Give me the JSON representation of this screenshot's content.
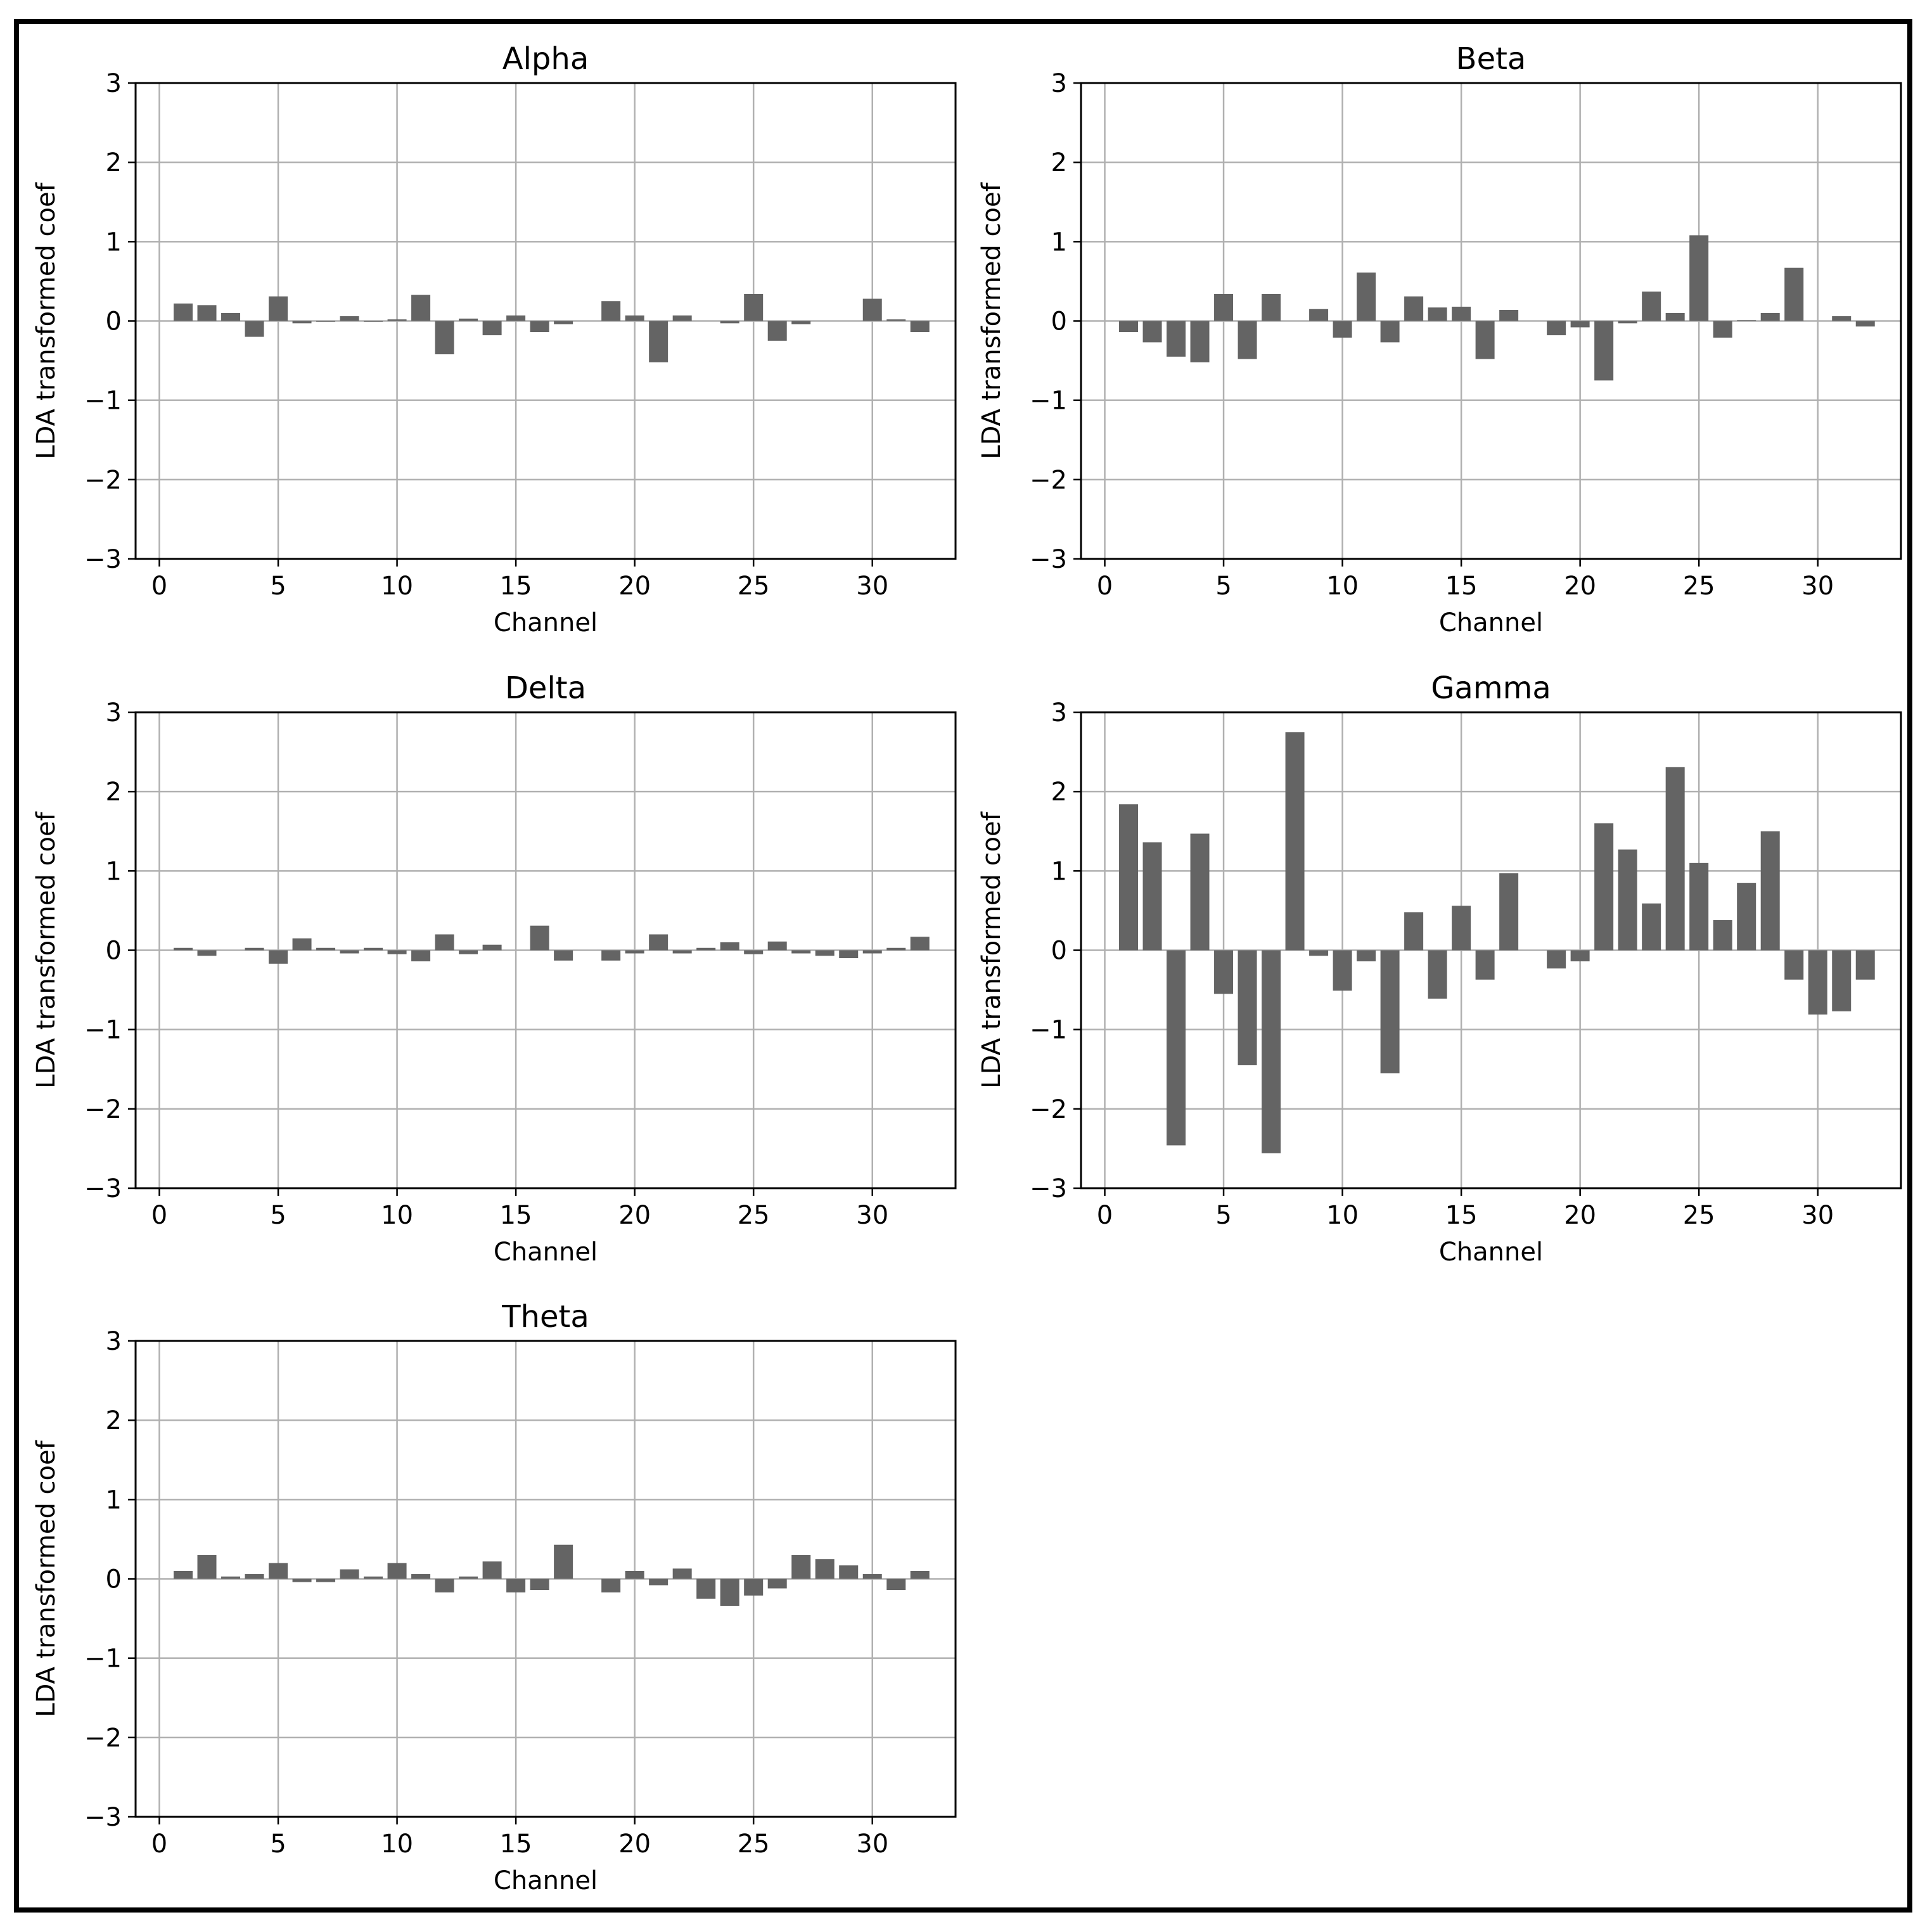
{
  "chart_data": [
    {
      "type": "bar",
      "title": "Alpha",
      "xlabel": "Channel",
      "ylabel": "LDA transformed coef",
      "xlim": [
        -1,
        33.5
      ],
      "ylim": [
        -3,
        3
      ],
      "xticks": [
        0,
        5,
        10,
        15,
        20,
        25,
        30
      ],
      "yticks": [
        3,
        2,
        1,
        0,
        -1,
        -2,
        -3
      ],
      "grid": true,
      "bar_color": "#646464",
      "x": [
        1,
        2,
        3,
        4,
        5,
        6,
        7,
        8,
        9,
        10,
        11,
        12,
        13,
        14,
        15,
        16,
        17,
        18,
        19,
        20,
        21,
        22,
        23,
        24,
        25,
        26,
        27,
        28,
        29,
        30,
        31,
        32
      ],
      "values": [
        0.22,
        0.2,
        0.1,
        -0.2,
        0.31,
        -0.03,
        -0.01,
        0.06,
        -0.01,
        0.02,
        0.33,
        -0.42,
        0.03,
        -0.18,
        0.07,
        -0.14,
        -0.04,
        0.0,
        0.25,
        0.07,
        -0.52,
        0.07,
        0.0,
        -0.03,
        0.34,
        -0.25,
        -0.04,
        0.0,
        0.0,
        0.28,
        0.02,
        -0.14
      ]
    },
    {
      "type": "bar",
      "title": "Beta",
      "xlabel": "Channel",
      "ylabel": "LDA transformed coef",
      "xlim": [
        -1,
        33.5
      ],
      "ylim": [
        -3,
        3
      ],
      "xticks": [
        0,
        5,
        10,
        15,
        20,
        25,
        30
      ],
      "yticks": [
        3,
        2,
        1,
        0,
        -1,
        -2,
        -3
      ],
      "grid": true,
      "bar_color": "#646464",
      "x": [
        1,
        2,
        3,
        4,
        5,
        6,
        7,
        8,
        9,
        10,
        11,
        12,
        13,
        14,
        15,
        16,
        17,
        18,
        19,
        20,
        21,
        22,
        23,
        24,
        25,
        26,
        27,
        28,
        29,
        30,
        31,
        32
      ],
      "values": [
        -0.14,
        -0.27,
        -0.45,
        -0.52,
        0.34,
        -0.48,
        0.34,
        0.0,
        0.15,
        -0.21,
        0.61,
        -0.27,
        0.31,
        0.17,
        0.18,
        -0.48,
        0.14,
        0.0,
        -0.18,
        -0.08,
        -0.75,
        -0.03,
        0.37,
        0.1,
        1.08,
        -0.21,
        0.01,
        0.1,
        0.67,
        0.0,
        0.06,
        -0.07
      ]
    },
    {
      "type": "bar",
      "title": "Delta",
      "xlabel": "Channel",
      "ylabel": "LDA transformed coef",
      "xlim": [
        -1,
        33.5
      ],
      "ylim": [
        -3,
        3
      ],
      "xticks": [
        0,
        5,
        10,
        15,
        20,
        25,
        30
      ],
      "yticks": [
        3,
        2,
        1,
        0,
        -1,
        -2,
        -3
      ],
      "grid": true,
      "bar_color": "#646464",
      "x": [
        1,
        2,
        3,
        4,
        5,
        6,
        7,
        8,
        9,
        10,
        11,
        12,
        13,
        14,
        15,
        16,
        17,
        18,
        19,
        20,
        21,
        22,
        23,
        24,
        25,
        26,
        27,
        28,
        29,
        30,
        31,
        32
      ],
      "values": [
        0.03,
        -0.07,
        0.0,
        0.03,
        -0.17,
        0.15,
        0.03,
        -0.04,
        0.03,
        -0.05,
        -0.14,
        0.2,
        -0.05,
        0.07,
        0.0,
        0.31,
        -0.13,
        0.0,
        -0.13,
        -0.04,
        0.2,
        -0.04,
        0.03,
        0.1,
        -0.05,
        0.11,
        -0.04,
        -0.07,
        -0.1,
        -0.04,
        0.03,
        0.17
      ]
    },
    {
      "type": "bar",
      "title": "Gamma",
      "xlabel": "Channel",
      "ylabel": "LDA transformed coef",
      "xlim": [
        -1,
        33.5
      ],
      "ylim": [
        -3,
        3
      ],
      "xticks": [
        0,
        5,
        10,
        15,
        20,
        25,
        30
      ],
      "yticks": [
        3,
        2,
        1,
        0,
        -1,
        -2,
        -3
      ],
      "grid": true,
      "bar_color": "#646464",
      "x": [
        1,
        2,
        3,
        4,
        5,
        6,
        7,
        8,
        9,
        10,
        11,
        12,
        13,
        14,
        15,
        16,
        17,
        18,
        19,
        20,
        21,
        22,
        23,
        24,
        25,
        26,
        27,
        28,
        29,
        30,
        31,
        32
      ],
      "values": [
        1.84,
        1.36,
        -2.46,
        1.47,
        -0.55,
        -1.45,
        -2.56,
        2.75,
        -0.07,
        -0.51,
        -0.14,
        -1.55,
        0.48,
        -0.61,
        0.56,
        -0.37,
        0.97,
        0.0,
        -0.23,
        -0.14,
        1.6,
        1.27,
        0.59,
        2.31,
        1.1,
        0.38,
        0.85,
        1.5,
        -0.37,
        -0.81,
        -0.77,
        -0.37
      ]
    },
    {
      "type": "bar",
      "title": "Theta",
      "xlabel": "Channel",
      "ylabel": "LDA transformed coef",
      "xlim": [
        -1,
        33.5
      ],
      "ylim": [
        -3,
        3
      ],
      "xticks": [
        0,
        5,
        10,
        15,
        20,
        25,
        30
      ],
      "yticks": [
        3,
        2,
        1,
        0,
        -1,
        -2,
        -3
      ],
      "grid": true,
      "bar_color": "#646464",
      "x": [
        1,
        2,
        3,
        4,
        5,
        6,
        7,
        8,
        9,
        10,
        11,
        12,
        13,
        14,
        15,
        16,
        17,
        18,
        19,
        20,
        21,
        22,
        23,
        24,
        25,
        26,
        27,
        28,
        29,
        30,
        31,
        32
      ],
      "values": [
        0.1,
        0.3,
        0.03,
        0.06,
        0.2,
        -0.04,
        -0.04,
        0.12,
        0.03,
        0.2,
        0.06,
        -0.17,
        0.03,
        0.22,
        -0.17,
        -0.14,
        0.43,
        0.0,
        -0.17,
        0.1,
        -0.08,
        0.13,
        -0.25,
        -0.34,
        -0.21,
        -0.12,
        0.3,
        0.25,
        0.17,
        0.06,
        -0.14,
        0.1
      ]
    }
  ]
}
